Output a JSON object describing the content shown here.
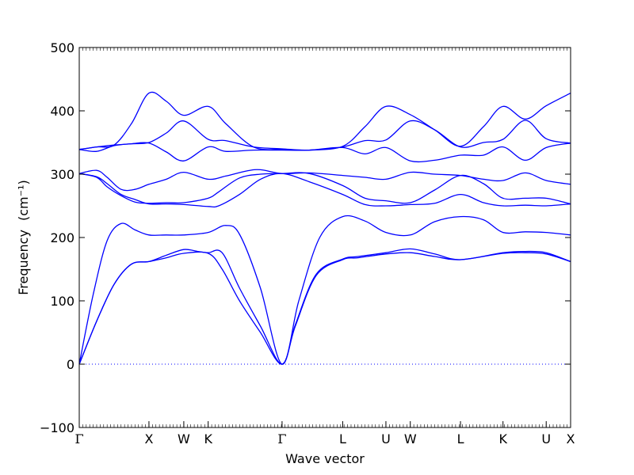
{
  "chart_data": {
    "type": "line",
    "title": "",
    "xlabel": "Wave vector",
    "ylabel": "Frequency",
    "ylabel_unit": "(cm⁻¹)",
    "ylim": [
      -100,
      500
    ],
    "xlim": [
      0,
      7.05
    ],
    "y_ticks": [
      -100,
      0,
      100,
      200,
      300,
      400,
      500
    ],
    "y_tick_labels": [
      "−100",
      "0",
      "100",
      "200",
      "300",
      "400",
      "500"
    ],
    "x_ticks": [
      {
        "label": "Γ",
        "x": 0
      },
      {
        "label": "X",
        "x": 1.0
      },
      {
        "label": "W",
        "x": 1.5
      },
      {
        "label": "K",
        "x": 1.85
      },
      {
        "label": "Γ",
        "x": 2.91
      },
      {
        "label": "L",
        "x": 3.78
      },
      {
        "label": "U",
        "x": 4.4
      },
      {
        "label": "W",
        "x": 4.75
      },
      {
        "label": "L",
        "x": 5.47
      },
      {
        "label": "K",
        "x": 6.08
      },
      {
        "label": "U",
        "x": 6.7
      },
      {
        "label": "X",
        "x": 7.05
      }
    ],
    "zero_line": {
      "y": 0,
      "style": "dotted"
    },
    "grid": false,
    "line_color": "#0000ff",
    "series": [
      {
        "points": [
          [
            0,
            0
          ],
          [
            0.25,
            68
          ],
          [
            0.5,
            126
          ],
          [
            0.75,
            158
          ],
          [
            1.0,
            162
          ],
          [
            1.25,
            168
          ],
          [
            1.5,
            175
          ],
          [
            1.85,
            175
          ],
          [
            2.05,
            150
          ],
          [
            2.3,
            100
          ],
          [
            2.6,
            50
          ],
          [
            2.91,
            0
          ],
          [
            3.1,
            60
          ],
          [
            3.4,
            140
          ],
          [
            3.78,
            165
          ],
          [
            4.0,
            168
          ],
          [
            4.4,
            174
          ],
          [
            4.75,
            176
          ],
          [
            5.1,
            170
          ],
          [
            5.47,
            165
          ],
          [
            6.08,
            175
          ],
          [
            6.4,
            176
          ],
          [
            6.7,
            174
          ],
          [
            7.05,
            162
          ]
        ]
      },
      {
        "points": [
          [
            0,
            0
          ],
          [
            0.25,
            68
          ],
          [
            0.5,
            126
          ],
          [
            0.75,
            158
          ],
          [
            1.0,
            162
          ],
          [
            1.25,
            172
          ],
          [
            1.5,
            181
          ],
          [
            1.7,
            178
          ],
          [
            1.85,
            176
          ],
          [
            2.05,
            176
          ],
          [
            2.3,
            120
          ],
          [
            2.6,
            60
          ],
          [
            2.91,
            0
          ],
          [
            3.1,
            62
          ],
          [
            3.4,
            142
          ],
          [
            3.78,
            166
          ],
          [
            4.0,
            170
          ],
          [
            4.4,
            176
          ],
          [
            4.75,
            182
          ],
          [
            5.1,
            174
          ],
          [
            5.47,
            165
          ],
          [
            6.08,
            176
          ],
          [
            6.4,
            178
          ],
          [
            6.7,
            176
          ],
          [
            7.05,
            162
          ]
        ]
      },
      {
        "points": [
          [
            0,
            0
          ],
          [
            0.2,
            110
          ],
          [
            0.4,
            195
          ],
          [
            0.6,
            222
          ],
          [
            0.8,
            212
          ],
          [
            1.0,
            204
          ],
          [
            1.25,
            204
          ],
          [
            1.5,
            204
          ],
          [
            1.85,
            208
          ],
          [
            2.1,
            219
          ],
          [
            2.3,
            205
          ],
          [
            2.6,
            120
          ],
          [
            2.91,
            0
          ],
          [
            3.15,
            100
          ],
          [
            3.45,
            200
          ],
          [
            3.78,
            233
          ],
          [
            4.1,
            226
          ],
          [
            4.4,
            208
          ],
          [
            4.75,
            204
          ],
          [
            5.1,
            225
          ],
          [
            5.47,
            233
          ],
          [
            5.8,
            228
          ],
          [
            6.08,
            208
          ],
          [
            6.4,
            209
          ],
          [
            6.7,
            208
          ],
          [
            7.05,
            204
          ]
        ]
      },
      {
        "points": [
          [
            0,
            301
          ],
          [
            0.25,
            296
          ],
          [
            0.4,
            285
          ],
          [
            0.6,
            268
          ],
          [
            0.8,
            260
          ],
          [
            1.0,
            253
          ],
          [
            1.25,
            253
          ],
          [
            1.5,
            252
          ],
          [
            1.85,
            249
          ],
          [
            2.0,
            250
          ],
          [
            2.3,
            268
          ],
          [
            2.6,
            292
          ],
          [
            2.91,
            301
          ],
          [
            3.3,
            288
          ],
          [
            3.78,
            268
          ],
          [
            4.1,
            252
          ],
          [
            4.4,
            250
          ],
          [
            4.75,
            252
          ],
          [
            5.1,
            254
          ],
          [
            5.47,
            268
          ],
          [
            5.8,
            255
          ],
          [
            6.08,
            250
          ],
          [
            6.4,
            251
          ],
          [
            6.7,
            250
          ],
          [
            7.05,
            253
          ]
        ]
      },
      {
        "points": [
          [
            0,
            301
          ],
          [
            0.25,
            295
          ],
          [
            0.4,
            280
          ],
          [
            0.6,
            266
          ],
          [
            0.8,
            256
          ],
          [
            1.0,
            254
          ],
          [
            1.25,
            255
          ],
          [
            1.5,
            255
          ],
          [
            1.85,
            262
          ],
          [
            2.0,
            272
          ],
          [
            2.3,
            294
          ],
          [
            2.6,
            300
          ],
          [
            2.91,
            301
          ],
          [
            3.3,
            301
          ],
          [
            3.78,
            282
          ],
          [
            4.1,
            262
          ],
          [
            4.4,
            258
          ],
          [
            4.75,
            255
          ],
          [
            5.1,
            275
          ],
          [
            5.47,
            298
          ],
          [
            5.8,
            285
          ],
          [
            6.08,
            262
          ],
          [
            6.4,
            262
          ],
          [
            6.7,
            262
          ],
          [
            7.05,
            253
          ]
        ]
      },
      {
        "points": [
          [
            0,
            301
          ],
          [
            0.25,
            306
          ],
          [
            0.4,
            295
          ],
          [
            0.6,
            276
          ],
          [
            0.8,
            276
          ],
          [
            1.0,
            284
          ],
          [
            1.25,
            292
          ],
          [
            1.5,
            303
          ],
          [
            1.85,
            292
          ],
          [
            2.1,
            297
          ],
          [
            2.4,
            305
          ],
          [
            2.6,
            307
          ],
          [
            2.91,
            301
          ],
          [
            3.3,
            302
          ],
          [
            3.78,
            298
          ],
          [
            4.1,
            295
          ],
          [
            4.4,
            292
          ],
          [
            4.75,
            303
          ],
          [
            5.1,
            300
          ],
          [
            5.47,
            298
          ],
          [
            5.8,
            292
          ],
          [
            6.08,
            290
          ],
          [
            6.4,
            302
          ],
          [
            6.7,
            290
          ],
          [
            7.05,
            284
          ]
        ]
      },
      {
        "points": [
          [
            0,
            339
          ],
          [
            0.25,
            336
          ],
          [
            0.5,
            345
          ],
          [
            0.75,
            348
          ],
          [
            1.0,
            349
          ],
          [
            1.25,
            335
          ],
          [
            1.5,
            321
          ],
          [
            1.85,
            343
          ],
          [
            2.1,
            336
          ],
          [
            2.5,
            338
          ],
          [
            2.91,
            338
          ],
          [
            3.3,
            338
          ],
          [
            3.78,
            342
          ],
          [
            4.1,
            332
          ],
          [
            4.4,
            342
          ],
          [
            4.75,
            321
          ],
          [
            5.1,
            322
          ],
          [
            5.47,
            330
          ],
          [
            5.8,
            330
          ],
          [
            6.08,
            343
          ],
          [
            6.4,
            322
          ],
          [
            6.7,
            342
          ],
          [
            7.05,
            349
          ]
        ]
      },
      {
        "points": [
          [
            0,
            339
          ],
          [
            0.25,
            343
          ],
          [
            0.5,
            346
          ],
          [
            0.75,
            348
          ],
          [
            1.0,
            350
          ],
          [
            1.25,
            365
          ],
          [
            1.5,
            384
          ],
          [
            1.85,
            355
          ],
          [
            2.1,
            353
          ],
          [
            2.5,
            343
          ],
          [
            2.91,
            340
          ],
          [
            3.3,
            338
          ],
          [
            3.78,
            343
          ],
          [
            4.1,
            353
          ],
          [
            4.4,
            354
          ],
          [
            4.75,
            384
          ],
          [
            5.1,
            370
          ],
          [
            5.47,
            343
          ],
          [
            5.8,
            350
          ],
          [
            6.08,
            355
          ],
          [
            6.4,
            385
          ],
          [
            6.7,
            356
          ],
          [
            7.05,
            349
          ]
        ]
      },
      {
        "points": [
          [
            0,
            339
          ],
          [
            0.25,
            343
          ],
          [
            0.5,
            346
          ],
          [
            0.75,
            380
          ],
          [
            1.0,
            428
          ],
          [
            1.25,
            415
          ],
          [
            1.5,
            393
          ],
          [
            1.85,
            407
          ],
          [
            2.1,
            380
          ],
          [
            2.5,
            343
          ],
          [
            2.91,
            339
          ],
          [
            3.3,
            338
          ],
          [
            3.78,
            344
          ],
          [
            4.1,
            375
          ],
          [
            4.4,
            407
          ],
          [
            4.75,
            394
          ],
          [
            5.1,
            370
          ],
          [
            5.47,
            344
          ],
          [
            5.8,
            375
          ],
          [
            6.08,
            407
          ],
          [
            6.4,
            387
          ],
          [
            6.7,
            408
          ],
          [
            7.05,
            428
          ]
        ]
      }
    ]
  }
}
